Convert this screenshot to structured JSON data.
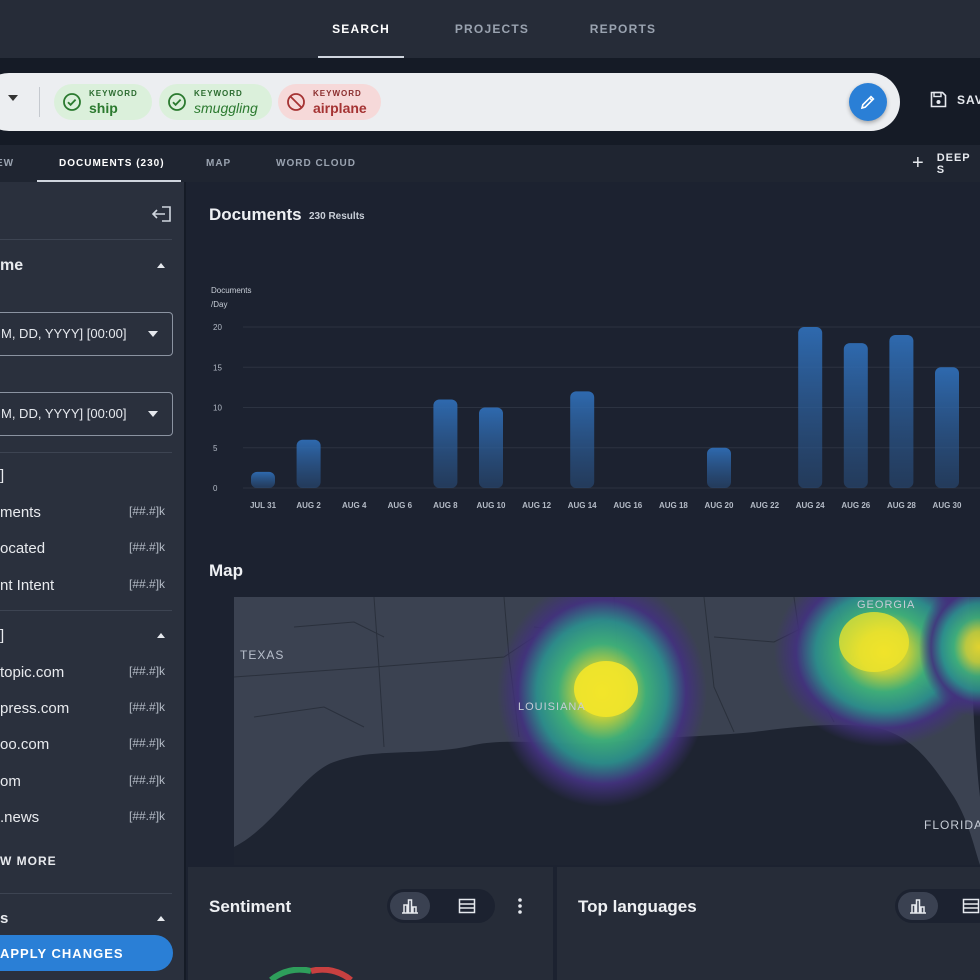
{
  "topnav": {
    "tabs": [
      "SEARCH",
      "PROJECTS",
      "REPORTS"
    ],
    "active": "SEARCH"
  },
  "search": {
    "chips": [
      {
        "kind": "KEYWORD",
        "value": "ship",
        "mode": "include"
      },
      {
        "kind": "KEYWORD",
        "value": "smuggling",
        "mode": "include"
      },
      {
        "kind": "KEYWORD",
        "value": "airplane",
        "mode": "exclude"
      }
    ],
    "save_label": "SAV"
  },
  "subtabs": {
    "items": [
      "EW",
      "DOCUMENTS (230)",
      "MAP",
      "WORD CLOUD"
    ],
    "active": "DOCUMENTS (230)",
    "deep_label": "DEEP S"
  },
  "sidebar": {
    "section1_title": "me",
    "dropdown1": "M, DD, YYYY] [00:00]",
    "dropdown2": "M, DD, YYYY] [00:00]",
    "group1_header": "]",
    "group1_items": [
      {
        "label": "ments",
        "count": "[##.#]k"
      },
      {
        "label": "ocated",
        "count": "[##.#]k"
      },
      {
        "label": "nt Intent",
        "count": "[##.#]k"
      }
    ],
    "group2_header": "]",
    "group2_items": [
      {
        "label": "topic.com",
        "count": "[##.#]k"
      },
      {
        "label": "press.com",
        "count": "[##.#]k"
      },
      {
        "label": "oo.com",
        "count": "[##.#]k"
      },
      {
        "label": "om",
        "count": "[##.#]k"
      },
      {
        "label": ".news",
        "count": "[##.#]k"
      }
    ],
    "show_more": "W MORE",
    "section3_title": "s",
    "apply_label": "APPLY CHANGES"
  },
  "documents": {
    "title": "Documents",
    "results": "230 Results",
    "chart_data": {
      "type": "bar",
      "ylabel": "Documents /Day",
      "ylabel_lines": [
        "Documents",
        "/Day"
      ],
      "ylim": [
        0,
        20
      ],
      "yticks": [
        0,
        5,
        10,
        15,
        20
      ],
      "x_labels": [
        "JUL 31",
        "AUG 2",
        "AUG 4",
        "AUG 6",
        "AUG 8",
        "AUG 10",
        "AUG 12",
        "AUG 14",
        "AUG 16",
        "AUG 18",
        "AUG 20",
        "AUG 22",
        "AUG 24",
        "AUG 26",
        "AUG 28",
        "AUG 30"
      ],
      "categories": [
        "JUL 31",
        "AUG 2",
        "AUG 8",
        "AUG 10",
        "AUG 14",
        "AUG 20",
        "AUG 24",
        "AUG 26",
        "AUG 28",
        "AUG 30"
      ],
      "values": [
        2,
        6,
        11,
        10,
        12,
        5,
        20,
        18,
        19,
        15
      ],
      "grid": true,
      "bar_color": "#2f6db5"
    }
  },
  "map": {
    "title": "Map",
    "labels": {
      "texas": "TEXAS",
      "louisiana": "LOUISIANA",
      "georgia": "GEORGIA",
      "florida": "FLORIDA"
    }
  },
  "sentiment": {
    "title": "Sentiment"
  },
  "languages": {
    "title": "Top languages"
  },
  "colors": {
    "accent": "#2a7fd6",
    "include": "#2b7a2f",
    "exclude": "#a53333"
  }
}
